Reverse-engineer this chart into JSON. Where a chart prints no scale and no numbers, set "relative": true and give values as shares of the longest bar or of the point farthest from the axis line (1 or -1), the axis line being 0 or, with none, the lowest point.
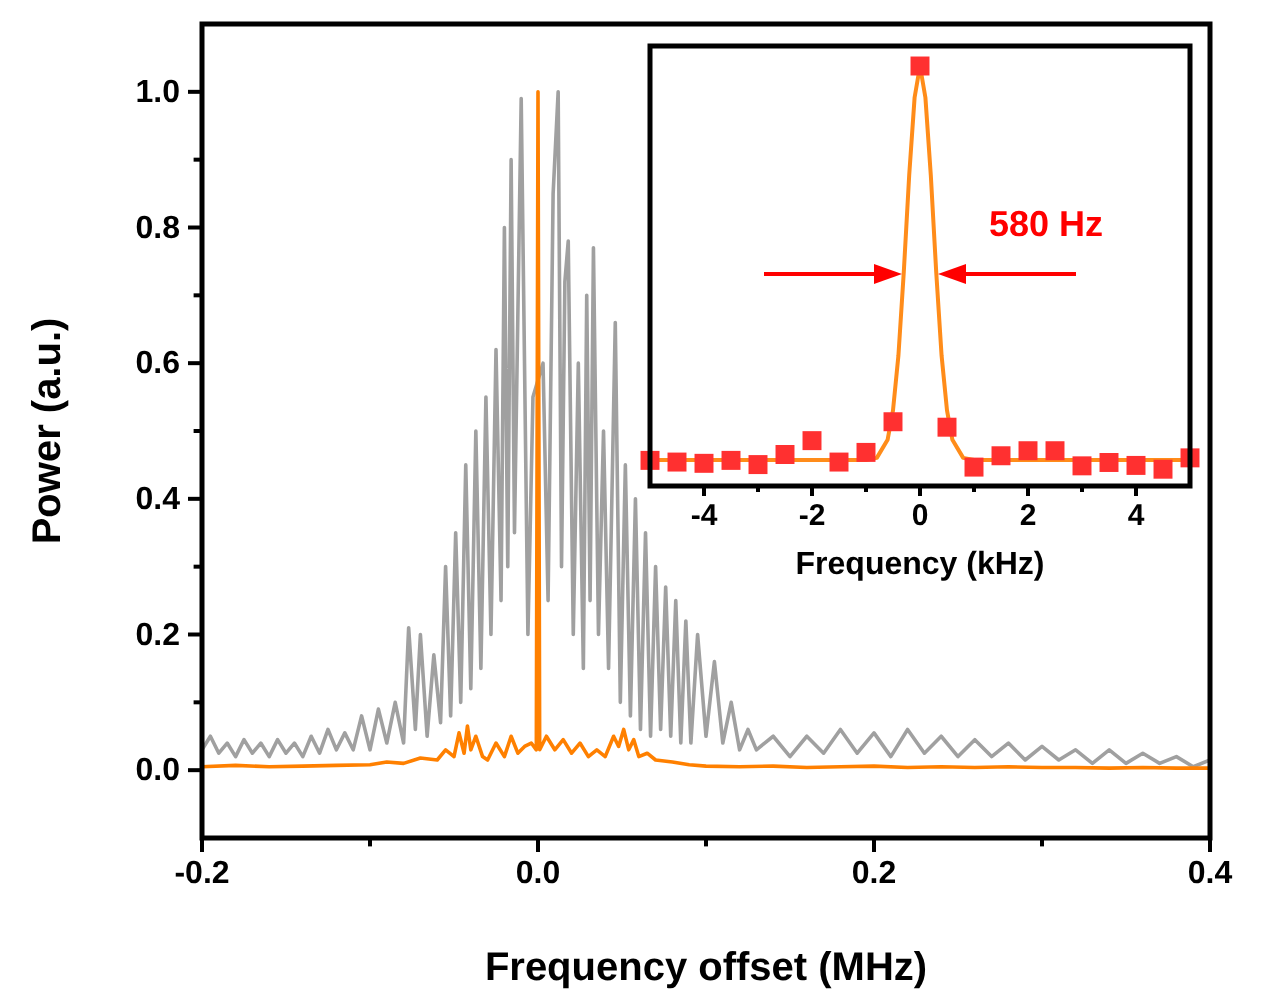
{
  "chart_data": [
    {
      "type": "line",
      "xlabel": "Frequency offset (MHz)",
      "ylabel": "Power (a.u.)",
      "xlim": [
        -0.2,
        0.4
      ],
      "ylim": [
        -0.1,
        1.1
      ],
      "xticks": [
        -0.2,
        {
          "value": -0.1,
          "label": null
        },
        {
          "value": 0,
          "label": "0.0"
        },
        {
          "value": 0.1,
          "label": null
        },
        0.2,
        {
          "value": 0.3,
          "label": null
        },
        0.4
      ],
      "yticks": [
        {
          "value": 0,
          "label": "0.0"
        },
        {
          "value": 0.1,
          "label": null
        },
        0.2,
        {
          "value": 0.3,
          "label": null
        },
        0.4,
        {
          "value": 0.5,
          "label": null
        },
        0.6,
        {
          "value": 0.7,
          "label": null
        },
        0.8,
        {
          "value": 0.9,
          "label": null
        },
        {
          "value": 1,
          "label": "1.0"
        }
      ],
      "grid": false,
      "line_style": "solid",
      "series": [
        {
          "color": "#a0a0a0",
          "x": [
            -0.2,
            -0.195,
            -0.19,
            -0.185,
            -0.18,
            -0.175,
            -0.17,
            -0.165,
            -0.16,
            -0.155,
            -0.15,
            -0.145,
            -0.14,
            -0.135,
            -0.13,
            -0.125,
            -0.12,
            -0.115,
            -0.11,
            -0.105,
            -0.1,
            -0.095,
            -0.09,
            -0.085,
            -0.08,
            -0.077,
            -0.073,
            -0.07,
            -0.066,
            -0.062,
            -0.058,
            -0.055,
            -0.052,
            -0.049,
            -0.046,
            -0.043,
            -0.04,
            -0.037,
            -0.034,
            -0.031,
            -0.028,
            -0.025,
            -0.022,
            -0.02,
            -0.018,
            -0.016,
            -0.014,
            -0.01,
            -0.006,
            -0.003,
            0,
            0.003,
            0.006,
            0.009,
            0.012,
            0.014,
            0.016,
            0.018,
            0.021,
            0.024,
            0.027,
            0.029,
            0.031,
            0.033,
            0.036,
            0.039,
            0.042,
            0.046,
            0.049,
            0.052,
            0.055,
            0.058,
            0.061,
            0.064,
            0.067,
            0.07,
            0.073,
            0.076,
            0.079,
            0.082,
            0.085,
            0.088,
            0.091,
            0.095,
            0.1,
            0.105,
            0.11,
            0.115,
            0.12,
            0.125,
            0.13,
            0.14,
            0.15,
            0.16,
            0.17,
            0.18,
            0.19,
            0.2,
            0.21,
            0.22,
            0.23,
            0.24,
            0.25,
            0.26,
            0.27,
            0.28,
            0.29,
            0.3,
            0.31,
            0.32,
            0.33,
            0.34,
            0.35,
            0.36,
            0.37,
            0.38,
            0.39,
            0.4
          ],
          "values": [
            0.03,
            0.05,
            0.025,
            0.04,
            0.02,
            0.045,
            0.025,
            0.04,
            0.02,
            0.045,
            0.025,
            0.04,
            0.02,
            0.05,
            0.025,
            0.06,
            0.03,
            0.055,
            0.03,
            0.08,
            0.03,
            0.09,
            0.04,
            0.1,
            0.04,
            0.21,
            0.06,
            0.2,
            0.05,
            0.17,
            0.07,
            0.3,
            0.08,
            0.35,
            0.1,
            0.45,
            0.12,
            0.5,
            0.15,
            0.55,
            0.2,
            0.62,
            0.25,
            0.8,
            0.3,
            0.9,
            0.35,
            0.99,
            0.2,
            0.55,
            null,
            0.6,
            0.25,
            0.85,
            1.0,
            0.3,
            0.72,
            0.78,
            0.2,
            0.6,
            0.15,
            0.7,
            0.25,
            0.77,
            0.2,
            0.5,
            0.15,
            0.66,
            0.1,
            0.45,
            0.08,
            0.4,
            0.06,
            0.35,
            0.05,
            0.3,
            0.06,
            0.27,
            0.05,
            0.25,
            0.04,
            0.22,
            0.04,
            0.2,
            0.05,
            0.16,
            0.04,
            0.1,
            0.03,
            0.06,
            0.03,
            0.05,
            0.02,
            0.05,
            0.025,
            0.06,
            0.025,
            0.055,
            0.02,
            0.06,
            0.025,
            0.05,
            0.02,
            0.045,
            0.02,
            0.04,
            0.015,
            0.035,
            0.015,
            0.03,
            0.01,
            0.03,
            0.01,
            0.025,
            0.01,
            0.02,
            0.005,
            0.015
          ]
        },
        {
          "color": "#ff8000",
          "x": [
            -0.2,
            -0.18,
            -0.16,
            -0.14,
            -0.12,
            -0.1,
            -0.09,
            -0.08,
            -0.07,
            -0.06,
            -0.055,
            -0.05,
            -0.047,
            -0.044,
            -0.042,
            -0.04,
            -0.037,
            -0.033,
            -0.03,
            -0.025,
            -0.02,
            -0.016,
            -0.012,
            -0.008,
            -0.004,
            -0.001,
            0,
            0.001,
            0.005,
            0.01,
            0.015,
            0.02,
            0.025,
            0.03,
            0.035,
            0.04,
            0.045,
            0.048,
            0.051,
            0.054,
            0.057,
            0.06,
            0.065,
            0.07,
            0.08,
            0.09,
            0.1,
            0.12,
            0.14,
            0.16,
            0.18,
            0.2,
            0.22,
            0.24,
            0.26,
            0.28,
            0.3,
            0.32,
            0.34,
            0.36,
            0.38,
            0.4
          ],
          "values": [
            0.005,
            0.007,
            0.005,
            0.006,
            0.007,
            0.008,
            0.012,
            0.01,
            0.018,
            0.015,
            0.03,
            0.02,
            0.055,
            0.025,
            0.065,
            0.03,
            0.05,
            0.02,
            0.015,
            0.04,
            0.02,
            0.05,
            0.025,
            0.035,
            0.04,
            0.03,
            1.0,
            0.03,
            0.05,
            0.03,
            0.045,
            0.025,
            0.04,
            0.02,
            0.03,
            0.02,
            0.05,
            0.035,
            0.06,
            0.03,
            0.045,
            0.02,
            0.025,
            0.015,
            0.012,
            0.008,
            0.006,
            0.005,
            0.006,
            0.004,
            0.005,
            0.006,
            0.004,
            0.005,
            0.004,
            0.005,
            0.004,
            0.004,
            0.003,
            0.004,
            0.003,
            0.003
          ]
        }
      ]
    },
    {
      "type": "scatter",
      "xlabel": "Frequency (kHz)",
      "relative": true,
      "xlim": [
        -5,
        5
      ],
      "xticks": [
        -4,
        {
          "value": -3,
          "label": null
        },
        -2,
        {
          "value": -1,
          "label": null
        },
        0,
        {
          "value": 1,
          "label": null
        },
        2,
        {
          "value": 3,
          "label": null
        },
        4
      ],
      "grid": false,
      "annotations": [
        "580 Hz"
      ],
      "series": [
        {
          "type": "line",
          "color": "#ff8c1a",
          "x": [
            -5,
            -4,
            -3,
            -2,
            -1,
            -0.8,
            -0.6,
            -0.5,
            -0.4,
            -0.3,
            -0.2,
            -0.1,
            0,
            0.1,
            0.2,
            0.3,
            0.4,
            0.5,
            0.6,
            0.8,
            1,
            2,
            3,
            4,
            5
          ],
          "values": [
            0.062,
            0.062,
            0.062,
            0.062,
            0.062,
            0.067,
            0.11,
            0.18,
            0.31,
            0.51,
            0.74,
            0.925,
            1.0,
            0.925,
            0.74,
            0.51,
            0.31,
            0.18,
            0.11,
            0.067,
            0.062,
            0.062,
            0.062,
            0.062,
            0.062
          ]
        },
        {
          "marker": "square",
          "color": "#ff3030",
          "x": [
            -5,
            -4.5,
            -4,
            -3.5,
            -3,
            -2.5,
            -2,
            -1.5,
            -1,
            -0.5,
            0,
            0.5,
            1,
            1.5,
            2,
            2.5,
            3,
            3.5,
            4,
            4.5,
            5
          ],
          "values": [
            0.061,
            0.057,
            0.054,
            0.061,
            0.051,
            0.075,
            0.108,
            0.057,
            0.08,
            0.153,
            1.0,
            0.14,
            0.045,
            0.072,
            0.084,
            0.084,
            0.048,
            0.056,
            0.049,
            0.04,
            0.067
          ]
        }
      ]
    }
  ]
}
